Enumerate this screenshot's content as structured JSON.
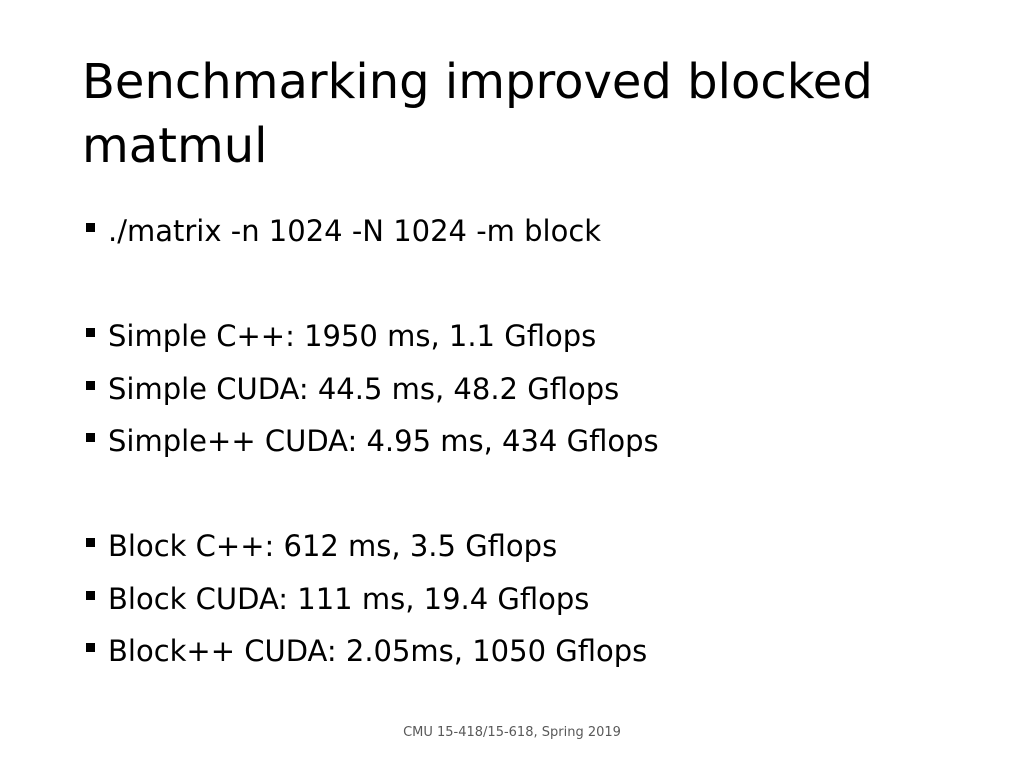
{
  "slide": {
    "title_line1": "Benchmarking improved blocked",
    "title_line2": "matmul",
    "bullets": [
      "./matrix -n 1024 -N 1024 -m block",
      "",
      "Simple C++: 1950 ms, 1.1 Gflops",
      "Simple CUDA: 44.5 ms, 48.2 Gflops",
      "Simple++ CUDA: 4.95 ms, 434 Gflops",
      "",
      "Block C++: 612 ms, 3.5 Gflops",
      "Block CUDA: 111 ms, 19.4 Gflops",
      "Block++ CUDA: 2.05ms, 1050 Gflops"
    ],
    "footer": "CMU 15-418/15-618, Spring 2019"
  },
  "icons": {
    "bullet_marker": "square-bullet-icon"
  }
}
